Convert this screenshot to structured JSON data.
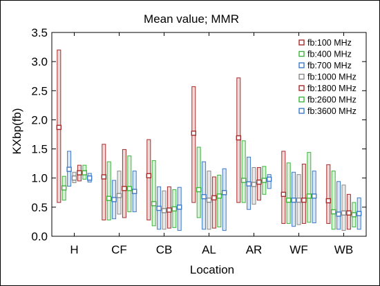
{
  "chart_data": {
    "type": "box",
    "title": "Mean value; MMR",
    "xlabel": "Location",
    "ylabel": "KXbp(fb)",
    "ylim": [
      0.0,
      3.5
    ],
    "yticks": [
      "0.0",
      "0.5",
      "1.0",
      "1.5",
      "2.0",
      "2.5",
      "3.0",
      "3.5"
    ],
    "ytick_values": [
      0.0,
      0.5,
      1.0,
      1.5,
      2.0,
      2.5,
      3.0,
      3.5
    ],
    "categories": [
      "H",
      "CF",
      "CB",
      "AL",
      "AR",
      "WF",
      "WB"
    ],
    "legend_position": "top-right",
    "grid": false,
    "series": [
      {
        "name": "fb:100 MHz",
        "color": "#a52a2a",
        "mean": [
          1.87,
          1.02,
          1.04,
          1.77,
          1.69,
          0.72,
          0.61
        ],
        "box_low": [
          0.58,
          0.28,
          0.28,
          0.58,
          0.58,
          0.22,
          0.22
        ],
        "box_high": [
          3.2,
          1.58,
          1.66,
          2.57,
          2.72,
          1.46,
          1.23
        ]
      },
      {
        "name": "fb:400 MHz",
        "color": "#3cb43c",
        "mean": [
          0.83,
          0.65,
          0.56,
          0.8,
          0.96,
          0.62,
          0.42
        ],
        "box_low": [
          0.62,
          0.28,
          0.18,
          0.32,
          0.58,
          0.22,
          0.12
        ],
        "box_high": [
          1.03,
          1.28,
          1.3,
          1.53,
          1.64,
          1.26,
          1.12
        ]
      },
      {
        "name": "fb:700 MHz",
        "color": "#3c78c8",
        "mean": [
          1.15,
          0.63,
          0.48,
          0.68,
          0.9,
          0.62,
          0.38
        ],
        "box_low": [
          0.86,
          0.3,
          0.12,
          0.12,
          0.46,
          0.17,
          0.12
        ],
        "box_high": [
          1.46,
          0.96,
          0.85,
          1.28,
          1.36,
          1.1,
          0.94
        ]
      },
      {
        "name": "fb:1000 MHz",
        "color": "#888888",
        "mean": [
          1.0,
          0.7,
          0.44,
          0.62,
          0.89,
          0.62,
          0.4
        ],
        "box_low": [
          0.92,
          0.38,
          0.12,
          0.12,
          0.55,
          0.2,
          0.1
        ],
        "box_high": [
          1.1,
          1.12,
          0.78,
          1.12,
          1.18,
          1.06,
          0.88
        ]
      },
      {
        "name": "fb:1800 MHz",
        "color": "#a52a2a",
        "mean": [
          1.09,
          0.82,
          0.45,
          0.66,
          0.93,
          0.62,
          0.4
        ],
        "box_low": [
          0.95,
          0.32,
          0.14,
          0.14,
          0.62,
          0.22,
          0.12
        ],
        "box_high": [
          1.22,
          1.49,
          0.85,
          1.02,
          1.18,
          1.24,
          0.72
        ]
      },
      {
        "name": "fb:2600 MHz",
        "color": "#3cb43c",
        "mean": [
          1.09,
          0.82,
          0.47,
          0.69,
          0.96,
          0.69,
          0.37
        ],
        "box_low": [
          0.98,
          0.42,
          0.15,
          0.16,
          0.72,
          0.24,
          0.16
        ],
        "box_high": [
          1.22,
          1.38,
          0.8,
          1.05,
          1.2,
          1.44,
          0.58
        ]
      },
      {
        "name": "fb:3600 MHz",
        "color": "#3c78c8",
        "mean": [
          1.0,
          0.77,
          0.5,
          0.75,
          0.98,
          0.69,
          0.39
        ],
        "box_low": [
          0.93,
          0.42,
          0.1,
          0.1,
          0.82,
          0.23,
          0.12
        ],
        "box_high": [
          1.08,
          1.12,
          0.84,
          1.16,
          1.06,
          1.12,
          0.66
        ]
      }
    ]
  }
}
